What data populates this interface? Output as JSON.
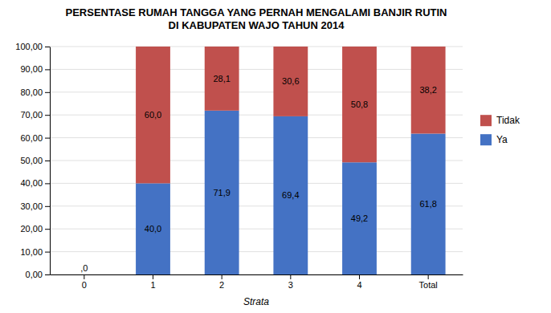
{
  "chart_data": {
    "type": "bar",
    "stacked": true,
    "title": "PERSENTASE RUMAH TANGGA YANG PERNAH MENGALAMI BANJIR RUTIN\nDI KABUPATEN WAJO TAHUN 2014",
    "x_label": "Strata",
    "categories": [
      "0",
      "1",
      "2",
      "3",
      "4",
      "Total"
    ],
    "series": [
      {
        "name": "Ya",
        "color": "#4472C4",
        "values": [
          0.0,
          40.0,
          71.9,
          69.4,
          49.2,
          61.8
        ],
        "value_labels": [
          ",0",
          "40,0",
          "71,9",
          "69,4",
          "49,2",
          "61,8"
        ]
      },
      {
        "name": "Tidak",
        "color": "#C0504D",
        "values": [
          0.0,
          60.0,
          28.1,
          30.6,
          50.8,
          38.2
        ],
        "value_labels": [
          null,
          "60,0",
          "28,1",
          "30,6",
          "50,8",
          "38,2"
        ]
      }
    ],
    "data_labels": true,
    "ylim": [
      0,
      100
    ],
    "yticks": [
      {
        "value": 0,
        "label": "0,00"
      },
      {
        "value": 10,
        "label": "10,00"
      },
      {
        "value": 20,
        "label": "20,00"
      },
      {
        "value": 30,
        "label": "30,00"
      },
      {
        "value": 40,
        "label": "40,00"
      },
      {
        "value": 50,
        "label": "50,00"
      },
      {
        "value": 60,
        "label": "60,00"
      },
      {
        "value": 70,
        "label": "70,00"
      },
      {
        "value": 80,
        "label": "80,00"
      },
      {
        "value": 90,
        "label": "90,00"
      },
      {
        "value": 100,
        "label": "100,00"
      }
    ],
    "grid": true,
    "legend": "right"
  }
}
